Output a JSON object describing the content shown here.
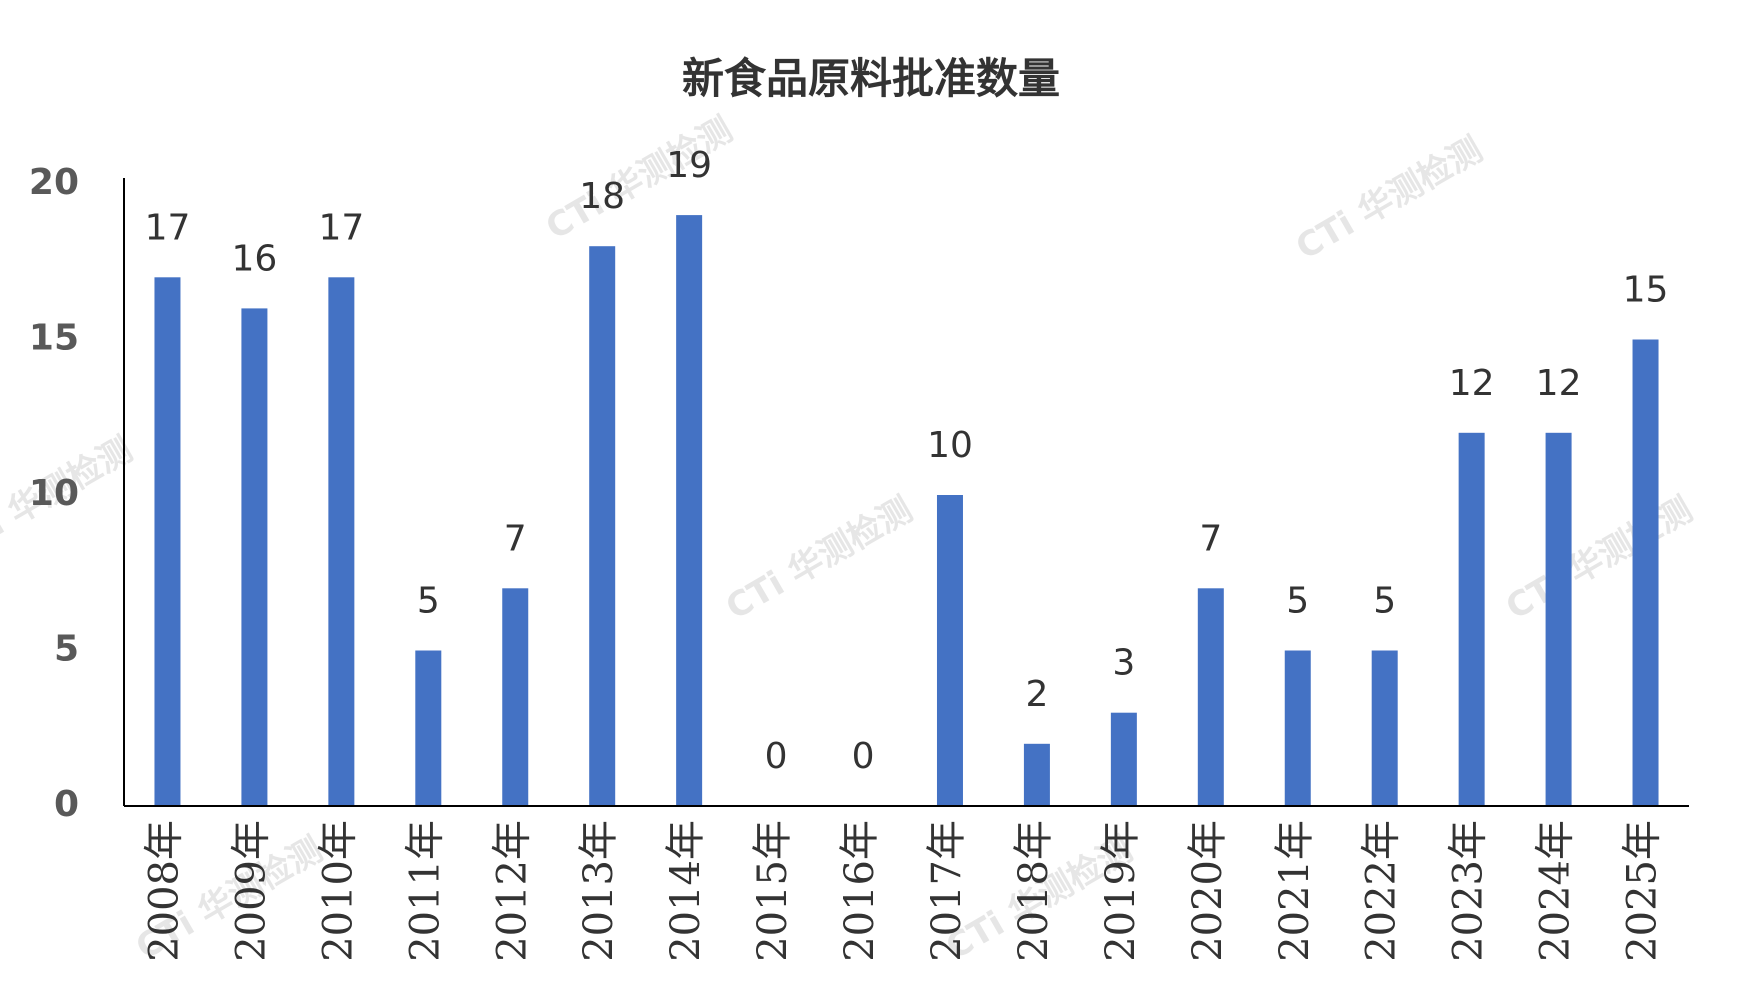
{
  "chart_data": {
    "type": "bar",
    "title": "新食品原料批准数量",
    "categories": [
      "2008年",
      "2009年",
      "2010年",
      "2011年",
      "2012年",
      "2013年",
      "2014年",
      "2015年",
      "2016年",
      "2017年",
      "2018年",
      "2019年",
      "2020年",
      "2021年",
      "2022年",
      "2023年",
      "2024年",
      "2025年"
    ],
    "values": [
      17,
      16,
      17,
      5,
      7,
      18,
      19,
      0,
      0,
      10,
      2,
      3,
      7,
      5,
      5,
      12,
      12,
      15
    ],
    "color": "#4472c4",
    "ylim": [
      0,
      20
    ],
    "yticks": [
      0,
      5,
      10,
      15,
      20
    ],
    "grid": false,
    "watermark": "CTi 华测检测"
  }
}
